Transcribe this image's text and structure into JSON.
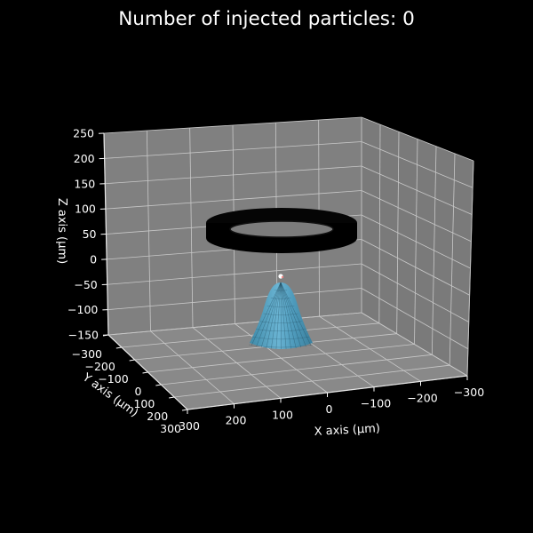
{
  "chart_data": {
    "type": "3d-scene",
    "title": "Number of injected particles: 0",
    "xlabel": "X axis ($\\mu m$)",
    "ylabel": "Y axis ($\\mu m$)",
    "zlabel": "Z axis ($\\mu m$)",
    "xlabel_display": "X axis (μm)",
    "ylabel_display": "Y axis (μm)",
    "zlabel_display": "Z axis (μm)",
    "xlim": [
      -300,
      300
    ],
    "ylim": [
      -300,
      300
    ],
    "zlim": [
      -150,
      250
    ],
    "x_ticks": [
      "300",
      "200",
      "100",
      "0",
      "−100",
      "−200",
      "−300"
    ],
    "y_ticks": [
      "−300",
      "−200",
      "−100",
      "0",
      "100",
      "200",
      "300"
    ],
    "z_ticks": [
      "250",
      "200",
      "150",
      "100",
      "50",
      "0",
      "−50",
      "−100",
      "−150"
    ],
    "grid": true,
    "pane_color": "#808080",
    "background": "#000000",
    "objects": [
      {
        "kind": "ring",
        "color": "#000000",
        "center_z": 65
      },
      {
        "kind": "cone",
        "color": "#5aa3c2",
        "apex_z": -30,
        "base_z": -150
      },
      {
        "kind": "point",
        "color": "#ffffff",
        "z": -28
      },
      {
        "kind": "point",
        "color": "#f08080",
        "z": -26
      }
    ],
    "injected_particles": 0
  }
}
